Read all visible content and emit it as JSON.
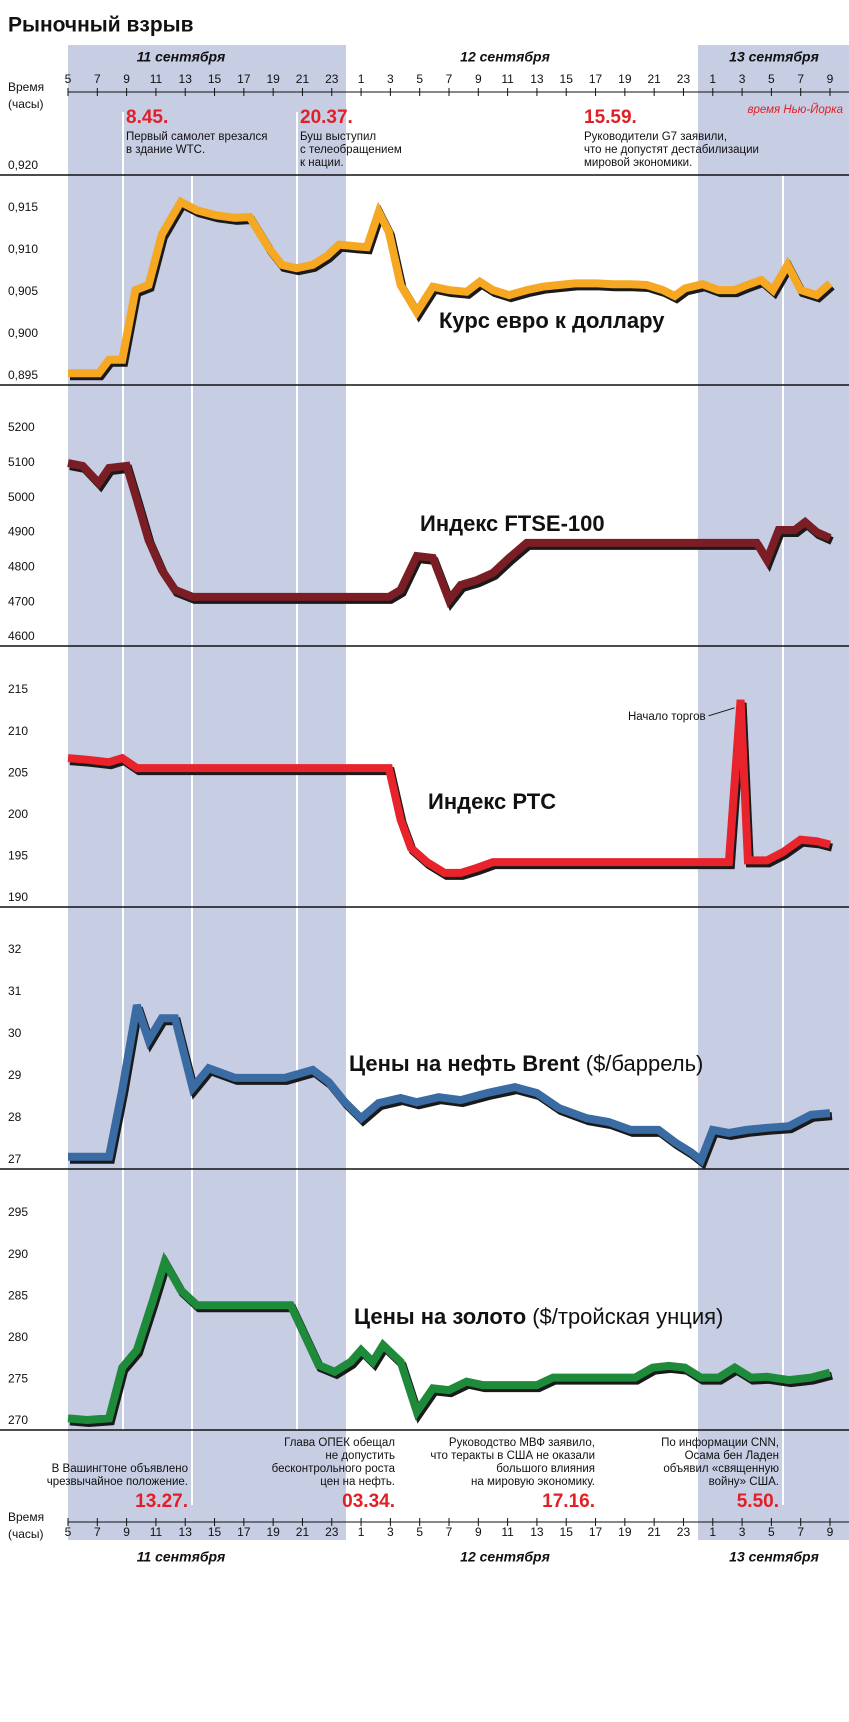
{
  "title": "Рыночный взрыв",
  "time_axis": {
    "label_top": "Время",
    "label_bottom": "(часы)",
    "timezone": "время Нью-Йорка",
    "days": [
      "11 сентября",
      "12 сентября",
      "13 сентября"
    ],
    "xlim": [
      5,
      57
    ],
    "xticks": [
      5,
      7,
      9,
      11,
      13,
      15,
      17,
      19,
      21,
      23,
      {
        "value": 25,
        "label": "1"
      },
      {
        "value": 27,
        "label": "3"
      },
      {
        "value": 29,
        "label": "5"
      },
      {
        "value": 31,
        "label": "7"
      },
      {
        "value": 33,
        "label": "9"
      },
      {
        "value": 35,
        "label": "11"
      },
      {
        "value": 37,
        "label": "13"
      },
      {
        "value": 39,
        "label": "15"
      },
      {
        "value": 41,
        "label": "17"
      },
      {
        "value": 43,
        "label": "19"
      },
      {
        "value": 45,
        "label": "21"
      },
      {
        "value": 47,
        "label": "23"
      },
      {
        "value": 49,
        "label": "1"
      },
      {
        "value": 51,
        "label": "3"
      },
      {
        "value": 53,
        "label": "5"
      },
      {
        "value": 55,
        "label": "7"
      },
      {
        "value": 57,
        "label": "9"
      }
    ]
  },
  "events_top": [
    {
      "time": "8.45.",
      "lines": [
        "Первый самолет врезался",
        "в здание WTC."
      ]
    },
    {
      "time": "20.37.",
      "lines": [
        "Буш выступил",
        "с телеобращением",
        "к нации."
      ]
    },
    {
      "time": "15.59.",
      "lines": [
        "Руководители G7 заявили,",
        "что не допустят дестабилизации",
        "мировой экономики."
      ]
    }
  ],
  "events_bottom": [
    {
      "time": "13.27.",
      "lines": [
        "В Вашингтоне объявлено",
        "чрезвычайное положение."
      ]
    },
    {
      "time": "03.34.",
      "lines": [
        "Глава ОПЕК обещал",
        "не допустить",
        "бесконтрольного роста",
        "цен на нефть."
      ]
    },
    {
      "time": "17.16.",
      "lines": [
        "Руководство МВФ заявило,",
        "что теракты в США не оказали",
        "большого влияния",
        "на мировую экономику."
      ]
    },
    {
      "time": "5.50.",
      "lines": [
        "По информации CNN,",
        "Осама бен Ладен",
        "объявил «священную",
        "войну» США."
      ]
    }
  ],
  "chart_data": [
    {
      "type": "line",
      "title": "Курс евро к доллару",
      "color": "#f7a823",
      "x": [
        5,
        7.1,
        7.8,
        8.7,
        9.6,
        10.5,
        11.4,
        12.7,
        13.8,
        15.1,
        16.4,
        17.4,
        18.7,
        19.6,
        20.6,
        21.7,
        22.7,
        23.5,
        24.7,
        25.4,
        26.2,
        26.9,
        27.7,
        28.8,
        29.9,
        31,
        32.2,
        33.1,
        34,
        35.1,
        36.3,
        37.4,
        38.5,
        39.6,
        41.1,
        42.2,
        43.4,
        44.5,
        45.6,
        46.4,
        47.1,
        48.3,
        49.4,
        50.5,
        51.2,
        52.3,
        53.1,
        54.1,
        55,
        56.1,
        57
      ],
      "values": [
        0.8964,
        0.8964,
        0.898,
        0.898,
        0.9063,
        0.9069,
        0.9129,
        0.9168,
        0.9158,
        0.9152,
        0.9149,
        0.915,
        0.9113,
        0.9093,
        0.9089,
        0.9093,
        0.9104,
        0.9117,
        0.9115,
        0.9114,
        0.9156,
        0.9132,
        0.9069,
        0.9037,
        0.9067,
        0.9063,
        0.9061,
        0.9073,
        0.9063,
        0.9057,
        0.9063,
        0.9067,
        0.9069,
        0.9071,
        0.9071,
        0.907,
        0.907,
        0.9069,
        0.9063,
        0.9056,
        0.9065,
        0.907,
        0.9063,
        0.9063,
        0.9068,
        0.9075,
        0.9063,
        0.9093,
        0.9063,
        0.9057,
        0.9071
      ],
      "ylim": [
        0.895,
        0.92
      ],
      "yticks": [
        {
          "value": 0.92,
          "label": "0,920"
        },
        {
          "value": 0.915,
          "label": "0,915"
        },
        {
          "value": 0.91,
          "label": "0,910"
        },
        {
          "value": 0.905,
          "label": "0,905"
        },
        {
          "value": 0.9,
          "label": "0,900"
        },
        {
          "value": 0.895,
          "label": "0,895"
        }
      ]
    },
    {
      "type": "line",
      "title": "Индекс FTSE-100",
      "color": "#7b1d25",
      "x": [
        5,
        6,
        7.1,
        7.8,
        9,
        9.7,
        10.5,
        11.4,
        12.3,
        13.5,
        26.9,
        27.7,
        28.8,
        29.9,
        31,
        31.8,
        32.9,
        34,
        35.1,
        36.3,
        52,
        52.7,
        53.5,
        54.6,
        55.3,
        56.1,
        57
      ],
      "values": [
        5125,
        5117,
        5068,
        5111,
        5117,
        5019,
        4904,
        4818,
        4761,
        4741,
        4741,
        4761,
        4858,
        4853,
        4732,
        4775,
        4789,
        4810,
        4853,
        4896,
        4896,
        4847,
        4933,
        4933,
        4956,
        4927,
        4910
      ],
      "ylim": [
        4600,
        5200
      ],
      "yticks": [
        5200,
        5100,
        5000,
        4900,
        4800,
        4700,
        4600
      ]
    },
    {
      "type": "line",
      "title": "Индекс РТС",
      "color": "#e8232b",
      "annotation": "Начало торгов",
      "x": [
        5,
        6.3,
        7.8,
        8.7,
        9.7,
        10.8,
        26.9,
        27.7,
        28.4,
        29.5,
        30.7,
        31.8,
        32.9,
        34,
        50.1,
        50.9,
        51.4,
        52.7,
        53.8,
        55,
        56.1,
        57
      ],
      "values": [
        207.9,
        207.7,
        207.4,
        207.9,
        206.7,
        206.7,
        206.7,
        200.5,
        197.1,
        195.4,
        194.1,
        194.1,
        194.7,
        195.4,
        195.4,
        214.9,
        195.6,
        195.6,
        196.6,
        198.1,
        197.9,
        197.5
      ],
      "ylim": [
        190,
        215
      ],
      "yticks": [
        215,
        210,
        205,
        200,
        195,
        190
      ]
    },
    {
      "type": "line",
      "title": "Цены на нефть Brent",
      "unit": "($/баррель)",
      "color": "#3a6ba3",
      "x": [
        5,
        7.8,
        8.7,
        9.7,
        10.5,
        11.4,
        12.3,
        13.5,
        14.6,
        16.4,
        19.8,
        21.7,
        22.8,
        23.9,
        25,
        26.2,
        27.7,
        28.8,
        30.3,
        31.8,
        33.6,
        35.5,
        37,
        38.5,
        40.4,
        41.9,
        43.4,
        45.3,
        46.4,
        47.5,
        48.2,
        49,
        50.1,
        51.3,
        52.7,
        54.2,
        55.7,
        57
      ],
      "values": [
        27.29,
        27.29,
        28.88,
        30.9,
        30.07,
        30.59,
        30.59,
        28.93,
        29.4,
        29.17,
        29.17,
        29.36,
        29.07,
        28.59,
        28.21,
        28.57,
        28.69,
        28.59,
        28.71,
        28.64,
        28.81,
        28.95,
        28.81,
        28.45,
        28.21,
        28.12,
        27.93,
        27.93,
        27.64,
        27.4,
        27.21,
        27.93,
        27.86,
        27.93,
        27.98,
        28.02,
        28.29,
        28.33
      ],
      "ylim": [
        27,
        32
      ],
      "yticks": [
        32,
        31,
        30,
        29,
        28,
        27
      ]
    },
    {
      "type": "line",
      "title": "Цены на золото",
      "unit": "($/тройская унция)",
      "color": "#1e8b3b",
      "x": [
        5,
        6.3,
        7.8,
        8.7,
        9.7,
        10.8,
        11.6,
        12.7,
        13.8,
        20.2,
        21.3,
        22.1,
        23.2,
        24.3,
        25,
        25.8,
        26.5,
        27.7,
        28.8,
        29.9,
        31,
        32.2,
        33.3,
        37,
        38.1,
        43.7,
        44.9,
        46,
        47.1,
        48.2,
        49.4,
        50.5,
        51.6,
        52.7,
        54.2,
        55.7,
        57
      ],
      "values": [
        271.4,
        271.2,
        271.4,
        277.5,
        279.6,
        285.6,
        290.2,
        286.8,
        285,
        285,
        280.8,
        277.8,
        277,
        278.2,
        279.6,
        278.2,
        280.2,
        278.2,
        272.2,
        275,
        274.8,
        275.8,
        275.4,
        275.4,
        276.3,
        276.3,
        277.5,
        277.7,
        277.5,
        276.3,
        276.3,
        277.5,
        276.3,
        276.4,
        276,
        276.3,
        276.9
      ],
      "ylim": [
        270,
        295
      ],
      "yticks": [
        295,
        290,
        285,
        280,
        275,
        270
      ]
    }
  ]
}
